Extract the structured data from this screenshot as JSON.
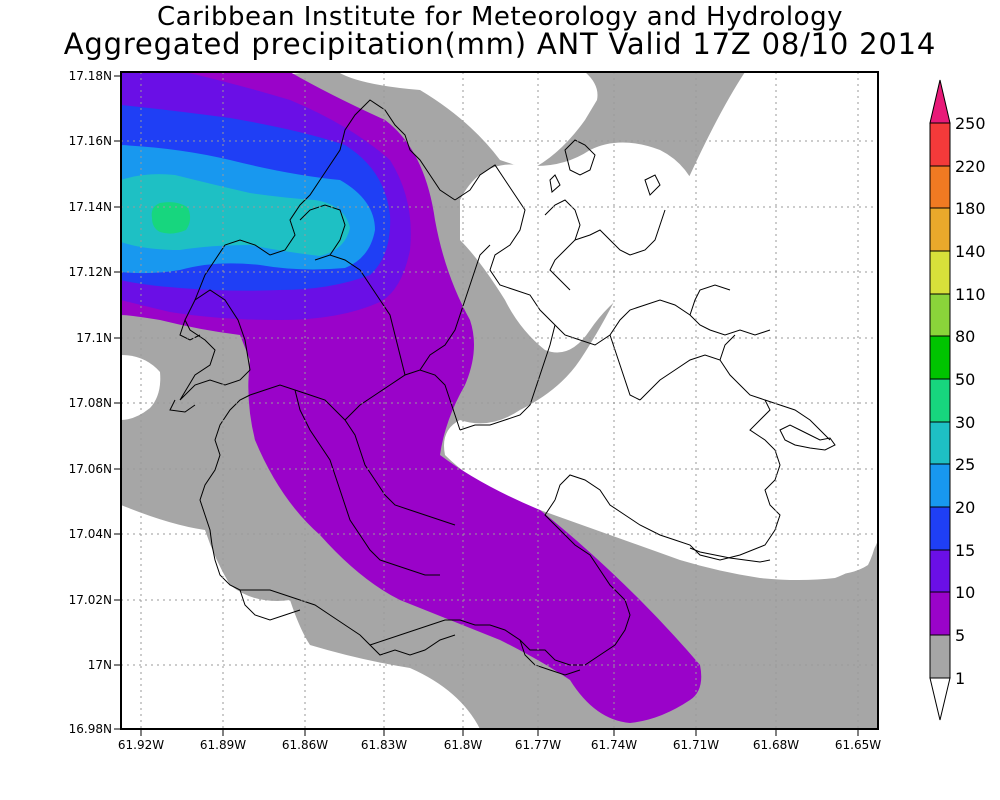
{
  "title": {
    "line1": "Caribbean Institute for Meteorology and Hydrology",
    "line2": "Aggregated precipitation(mm) ANT Valid 17Z 08/10 2014"
  },
  "map": {
    "lat_labels": [
      "17.18N",
      "17.16N",
      "17.14N",
      "17.12N",
      "17.1N",
      "17.08N",
      "17.06N",
      "17.04N",
      "17.02N",
      "17N",
      "16.98N"
    ],
    "lon_labels": [
      "61.92W",
      "61.89W",
      "61.86W",
      "61.83W",
      "61.8W",
      "61.77W",
      "61.74W",
      "61.71W",
      "61.68W",
      "61.65W"
    ],
    "lat_range": [
      16.98,
      17.18
    ],
    "lon_range": [
      -61.923,
      -61.646
    ],
    "grid": true
  },
  "colorbar": {
    "levels": [
      "1",
      "5",
      "10",
      "15",
      "20",
      "25",
      "30",
      "50",
      "80",
      "110",
      "140",
      "180",
      "220",
      "250"
    ],
    "colors": {
      "lt1": "#ffffff",
      "c1_5": "#a6a6a6",
      "c5_10": "#9a03c9",
      "c10_15": "#6a0fe6",
      "c15_20": "#1f3ff5",
      "c20_25": "#1898ef",
      "c25_30": "#1ec0c4",
      "c30_50": "#17d67e",
      "c50_80": "#00c400",
      "c80_110": "#8ad43a",
      "c110_140": "#d8e03a",
      "c140_180": "#e9a92b",
      "c180_220": "#f07a22",
      "c220_250": "#f43a3a",
      "gt250": "#e81a78"
    }
  }
}
